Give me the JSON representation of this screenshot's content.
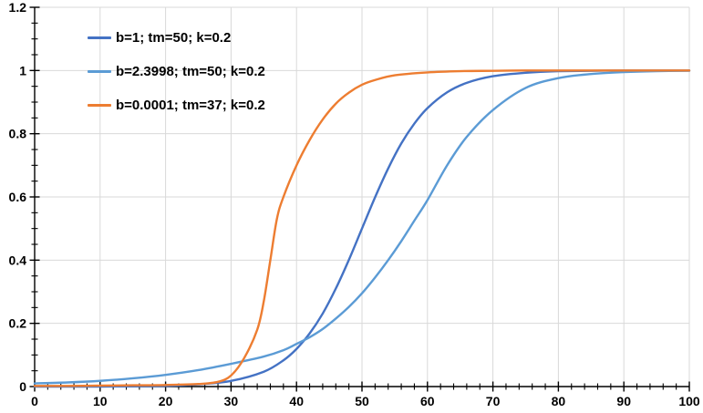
{
  "chart_data": {
    "type": "line",
    "title": "",
    "xlabel": "",
    "ylabel": "",
    "xlim": [
      0,
      100
    ],
    "ylim": [
      0,
      1.2
    ],
    "x_tick_labels": [
      "0",
      "10",
      "20",
      "30",
      "40",
      "50",
      "60",
      "70",
      "80",
      "90",
      "100"
    ],
    "x_major_ticks": [
      0,
      10,
      20,
      30,
      40,
      50,
      60,
      70,
      80,
      90,
      100
    ],
    "x_minor_step": 2,
    "y_tick_labels": [
      "0",
      "0.2",
      "0.4",
      "0.6",
      "0.8",
      "1",
      "1.2"
    ],
    "y_major_ticks": [
      0,
      0.2,
      0.4,
      0.6,
      0.8,
      1,
      1.2
    ],
    "y_minor_step": 0.05,
    "grid": true,
    "legend_position": "top-left-inside",
    "series": [
      {
        "name": "b=1; tm=50; k=0.2",
        "color": "#4472C4",
        "points": [
          [
            0,
            0.0
          ],
          [
            5,
            0.0
          ],
          [
            10,
            0.0
          ],
          [
            15,
            0.001
          ],
          [
            20,
            0.002
          ],
          [
            25,
            0.007
          ],
          [
            30,
            0.018
          ],
          [
            35,
            0.047
          ],
          [
            38,
            0.083
          ],
          [
            40,
            0.119
          ],
          [
            42,
            0.168
          ],
          [
            44,
            0.231
          ],
          [
            46,
            0.31
          ],
          [
            48,
            0.401
          ],
          [
            50,
            0.5
          ],
          [
            52,
            0.599
          ],
          [
            54,
            0.69
          ],
          [
            56,
            0.769
          ],
          [
            58,
            0.832
          ],
          [
            60,
            0.881
          ],
          [
            63,
            0.931
          ],
          [
            66,
            0.961
          ],
          [
            70,
            0.982
          ],
          [
            75,
            0.993
          ],
          [
            80,
            0.998
          ],
          [
            85,
            0.999
          ],
          [
            90,
            1.0
          ],
          [
            95,
            1.0
          ],
          [
            100,
            1.0
          ]
        ]
      },
      {
        "name": "b=2.3998; tm=50; k=0.2",
        "color": "#5B9BD5",
        "points": [
          [
            0,
            0.01
          ],
          [
            5,
            0.013
          ],
          [
            10,
            0.018
          ],
          [
            15,
            0.026
          ],
          [
            20,
            0.037
          ],
          [
            25,
            0.052
          ],
          [
            30,
            0.072
          ],
          [
            35,
            0.095
          ],
          [
            38,
            0.115
          ],
          [
            40,
            0.135
          ],
          [
            42,
            0.156
          ],
          [
            44,
            0.182
          ],
          [
            46,
            0.215
          ],
          [
            48,
            0.252
          ],
          [
            50,
            0.295
          ],
          [
            52,
            0.345
          ],
          [
            54,
            0.4
          ],
          [
            56,
            0.46
          ],
          [
            58,
            0.525
          ],
          [
            60,
            0.59
          ],
          [
            63,
            0.7
          ],
          [
            66,
            0.79
          ],
          [
            70,
            0.875
          ],
          [
            75,
            0.945
          ],
          [
            80,
            0.976
          ],
          [
            85,
            0.989
          ],
          [
            90,
            0.995
          ],
          [
            95,
            0.998
          ],
          [
            100,
            0.999
          ]
        ]
      },
      {
        "name": "b=0.0001; tm=37; k=0.2",
        "color": "#ED7D31",
        "points": [
          [
            0,
            0.002
          ],
          [
            5,
            0.002
          ],
          [
            10,
            0.003
          ],
          [
            15,
            0.004
          ],
          [
            20,
            0.005
          ],
          [
            25,
            0.008
          ],
          [
            28,
            0.015
          ],
          [
            30,
            0.035
          ],
          [
            32,
            0.09
          ],
          [
            34,
            0.18
          ],
          [
            35,
            0.27
          ],
          [
            36,
            0.4
          ],
          [
            37,
            0.53
          ],
          [
            38,
            0.6
          ],
          [
            40,
            0.7
          ],
          [
            42,
            0.78
          ],
          [
            44,
            0.845
          ],
          [
            46,
            0.895
          ],
          [
            48,
            0.93
          ],
          [
            50,
            0.955
          ],
          [
            52,
            0.97
          ],
          [
            55,
            0.985
          ],
          [
            60,
            0.994
          ],
          [
            65,
            0.998
          ],
          [
            70,
            0.999
          ],
          [
            75,
            1.0
          ],
          [
            80,
            1.0
          ],
          [
            85,
            1.0
          ],
          [
            90,
            1.0
          ],
          [
            95,
            1.0
          ],
          [
            100,
            1.0
          ]
        ]
      }
    ]
  },
  "colors": {
    "background": "#FFFFFF",
    "gridline": "#D9D9D9",
    "axis": "#000000",
    "tick": "#000000",
    "text": "#000000"
  }
}
